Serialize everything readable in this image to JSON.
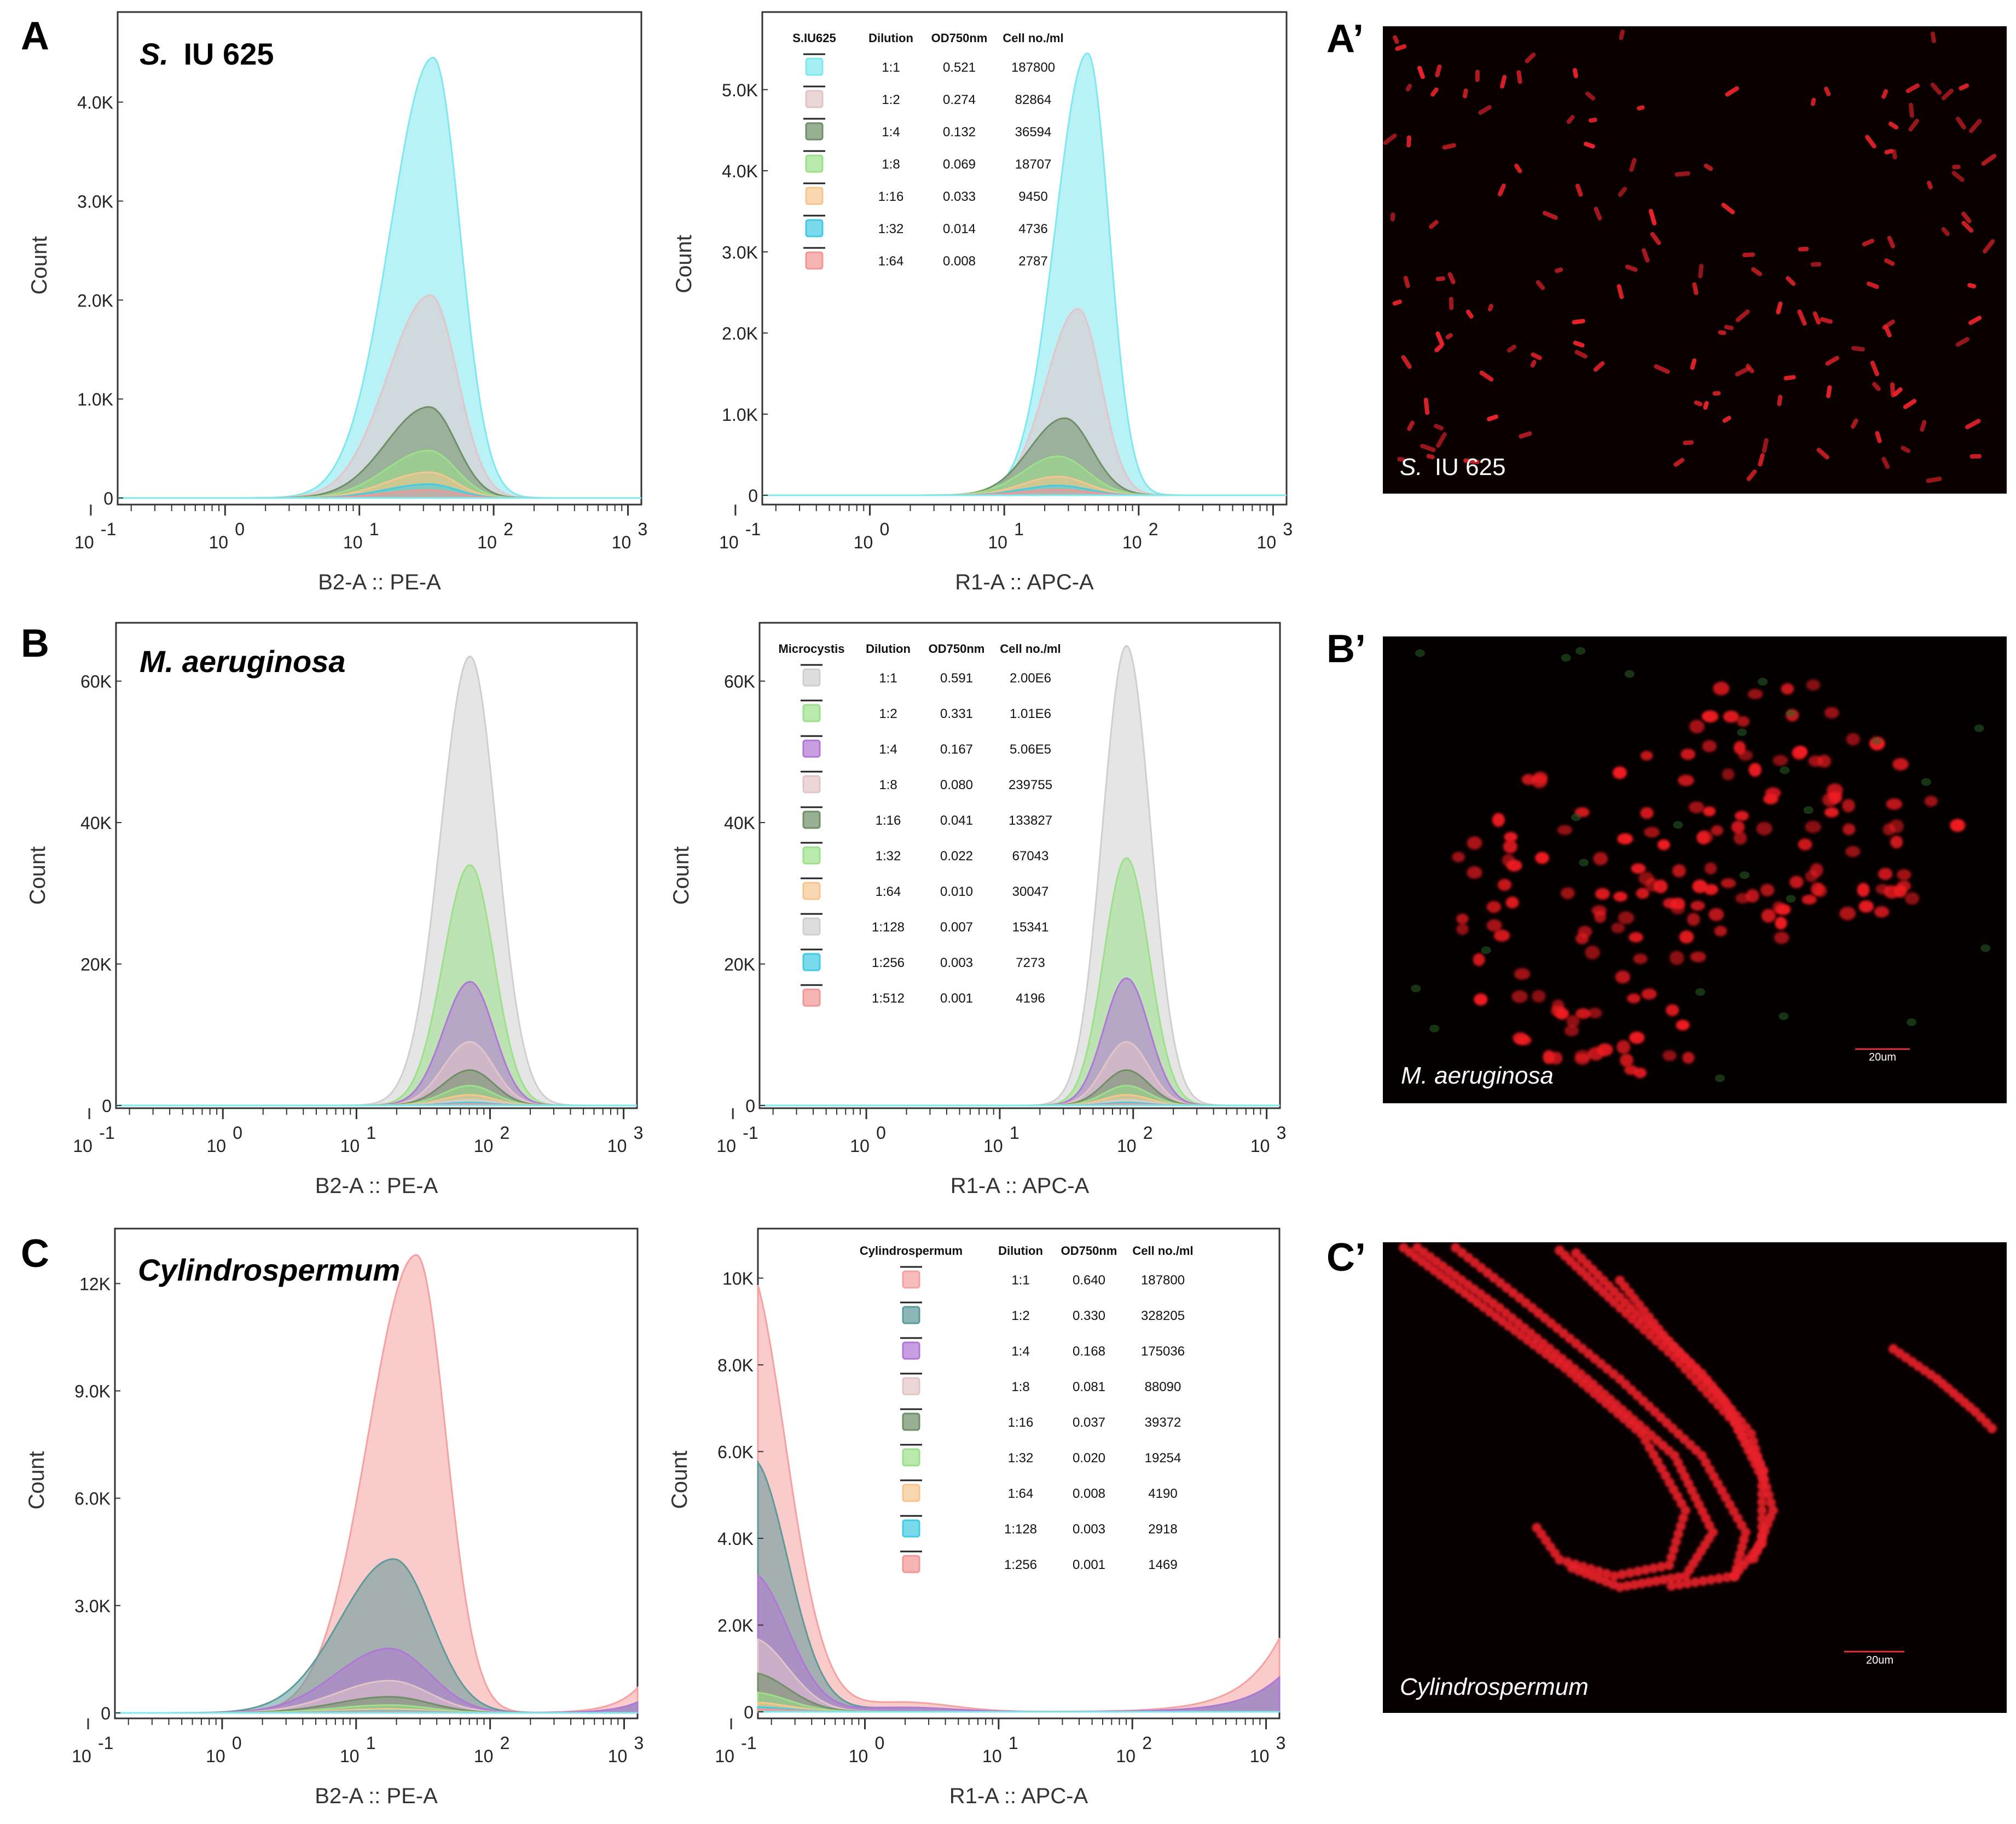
{
  "panels": [
    {
      "letter": "A",
      "species": "S.",
      "species_rest": "IU 625"
    },
    {
      "letter": "B",
      "species": "M. aeruginosa",
      "species_rest": ""
    },
    {
      "letter": "C",
      "species": "Cylindrospermum",
      "species_rest": ""
    }
  ],
  "micro": [
    {
      "letter": "A’",
      "label_it": "S.",
      "label_rest": "IU 625",
      "scale": ""
    },
    {
      "letter": "B’",
      "label_it": "M. aeruginosa",
      "label_rest": "",
      "scale": "20um"
    },
    {
      "letter": "C’",
      "label_it": "Cylindrospermum",
      "label_rest": "",
      "scale": "20um"
    }
  ],
  "colors": {
    "cyan": "#7fe8ee",
    "rose": "#e3c4c8",
    "dkgreen": "#6f8f66",
    "ltgreen": "#9de08a",
    "orange": "#f6c690",
    "blue": "#42cbe4",
    "red": "#f29696",
    "gray": "#cfcfcf",
    "teal": "#5d9a9a",
    "purple": "#b077d6",
    "salmon": "#f6a0a0"
  },
  "chart_data": [
    {
      "id": "A-PE",
      "type": "area",
      "xscale": "log",
      "xlim": [
        -0.8,
        3.1
      ],
      "xticks": [
        "-1",
        "0",
        "1",
        "2",
        "3"
      ],
      "xlabel": "B2-A :: PE-A",
      "ylabel": "Count",
      "ylim": [
        0,
        4700
      ],
      "yticks": [
        {
          "v": 0,
          "l": "0"
        },
        {
          "v": 1000,
          "l": "1.0K"
        },
        {
          "v": 2000,
          "l": "2.0K"
        },
        {
          "v": 3000,
          "l": "3.0K"
        },
        {
          "v": 4000,
          "l": "4.0K"
        }
      ],
      "series": [
        {
          "name": "1:1",
          "color": "cyan",
          "peak": 4450,
          "mu": 1.55,
          "sl": 0.32,
          "sr": 0.2
        },
        {
          "name": "1:2",
          "color": "rose",
          "peak": 2050,
          "mu": 1.53,
          "sl": 0.32,
          "sr": 0.2
        },
        {
          "name": "1:4",
          "color": "dkgreen",
          "peak": 920,
          "mu": 1.52,
          "sl": 0.32,
          "sr": 0.2
        },
        {
          "name": "1:8",
          "color": "ltgreen",
          "peak": 480,
          "mu": 1.52,
          "sl": 0.32,
          "sr": 0.2
        },
        {
          "name": "1:16",
          "color": "orange",
          "peak": 260,
          "mu": 1.52,
          "sl": 0.32,
          "sr": 0.2
        },
        {
          "name": "1:32",
          "color": "blue",
          "peak": 140,
          "mu": 1.52,
          "sl": 0.32,
          "sr": 0.2
        },
        {
          "name": "1:64",
          "color": "red",
          "peak": 80,
          "mu": 1.52,
          "sl": 0.32,
          "sr": 0.2
        }
      ]
    },
    {
      "id": "A-APC",
      "type": "area",
      "xscale": "log",
      "xlim": [
        -0.8,
        3.1
      ],
      "xticks": [
        "-1",
        "0",
        "1",
        "2",
        "3"
      ],
      "xlabel": "R1-A :: APC-A",
      "ylabel": "Count",
      "ylim": [
        0,
        5700
      ],
      "yticks": [
        {
          "v": 0,
          "l": "0"
        },
        {
          "v": 1000,
          "l": "1.0K"
        },
        {
          "v": 2000,
          "l": "2.0K"
        },
        {
          "v": 3000,
          "l": "3.0K"
        },
        {
          "v": 4000,
          "l": "4.0K"
        },
        {
          "v": 5000,
          "l": "5.0K"
        }
      ],
      "legend": {
        "title": "S.IU625",
        "headers": [
          "Dilution",
          "OD750nm",
          "Cell no./ml"
        ],
        "rows": [
          [
            "cyan",
            "1:1",
            "0.521",
            "187800"
          ],
          [
            "rose",
            "1:2",
            "0.274",
            "82864"
          ],
          [
            "dkgreen",
            "1:4",
            "0.132",
            "36594"
          ],
          [
            "ltgreen",
            "1:8",
            "0.069",
            "18707"
          ],
          [
            "orange",
            "1:16",
            "0.033",
            "9450"
          ],
          [
            "blue",
            "1:32",
            "0.014",
            "4736"
          ],
          [
            "red",
            "1:64",
            "0.008",
            "2787"
          ]
        ]
      },
      "series": [
        {
          "name": "1:1",
          "color": "cyan",
          "peak": 5450,
          "mu": 1.62,
          "sl": 0.24,
          "sr": 0.16
        },
        {
          "name": "1:2",
          "color": "rose",
          "peak": 2300,
          "mu": 1.55,
          "sl": 0.24,
          "sr": 0.17
        },
        {
          "name": "1:4",
          "color": "dkgreen",
          "peak": 950,
          "mu": 1.45,
          "sl": 0.26,
          "sr": 0.2
        },
        {
          "name": "1:8",
          "color": "ltgreen",
          "peak": 480,
          "mu": 1.4,
          "sl": 0.26,
          "sr": 0.22
        },
        {
          "name": "1:16",
          "color": "orange",
          "peak": 230,
          "mu": 1.4,
          "sl": 0.26,
          "sr": 0.22
        },
        {
          "name": "1:32",
          "color": "blue",
          "peak": 120,
          "mu": 1.4,
          "sl": 0.26,
          "sr": 0.22
        },
        {
          "name": "1:64",
          "color": "red",
          "peak": 70,
          "mu": 1.4,
          "sl": 0.26,
          "sr": 0.22
        }
      ]
    },
    {
      "id": "B-PE",
      "type": "area",
      "xscale": "log",
      "xlim": [
        -0.8,
        3.1
      ],
      "xticks": [
        "-1",
        "0",
        "1",
        "2",
        "3"
      ],
      "xlabel": "B2-A :: PE-A",
      "ylabel": "Count",
      "ylim": [
        0,
        65000
      ],
      "yticks": [
        {
          "v": 0,
          "l": "0"
        },
        {
          "v": 20000,
          "l": "20K"
        },
        {
          "v": 40000,
          "l": "40K"
        },
        {
          "v": 60000,
          "l": "60K"
        }
      ],
      "series": [
        {
          "name": "1:1",
          "color": "gray",
          "peak": 63500,
          "mu": 1.85,
          "sl": 0.22,
          "sr": 0.2
        },
        {
          "name": "1:2",
          "color": "ltgreen",
          "peak": 34000,
          "mu": 1.85,
          "sl": 0.2,
          "sr": 0.18
        },
        {
          "name": "1:4",
          "color": "purple",
          "peak": 17500,
          "mu": 1.85,
          "sl": 0.2,
          "sr": 0.18
        },
        {
          "name": "1:8",
          "color": "rose",
          "peak": 9000,
          "mu": 1.85,
          "sl": 0.2,
          "sr": 0.18
        },
        {
          "name": "1:16",
          "color": "dkgreen",
          "peak": 5000,
          "mu": 1.85,
          "sl": 0.2,
          "sr": 0.18
        },
        {
          "name": "1:32",
          "color": "ltgreen",
          "peak": 2800,
          "mu": 1.85,
          "sl": 0.2,
          "sr": 0.18
        },
        {
          "name": "1:64",
          "color": "orange",
          "peak": 1500,
          "mu": 1.85,
          "sl": 0.2,
          "sr": 0.18
        },
        {
          "name": "1:128",
          "color": "gray",
          "peak": 800,
          "mu": 1.85,
          "sl": 0.2,
          "sr": 0.18
        },
        {
          "name": "1:256",
          "color": "blue",
          "peak": 400,
          "mu": 1.85,
          "sl": 0.2,
          "sr": 0.18
        },
        {
          "name": "1:512",
          "color": "red",
          "peak": 200,
          "mu": 1.85,
          "sl": 0.2,
          "sr": 0.18
        }
      ]
    },
    {
      "id": "B-APC",
      "type": "area",
      "xscale": "log",
      "xlim": [
        -0.8,
        3.1
      ],
      "xticks": [
        "-1",
        "0",
        "1",
        "2",
        "3"
      ],
      "xlabel": "R1-A :: APC-A",
      "ylabel": "Count",
      "ylim": [
        0,
        65000
      ],
      "yticks": [
        {
          "v": 0,
          "l": "0"
        },
        {
          "v": 20000,
          "l": "20K"
        },
        {
          "v": 40000,
          "l": "40K"
        },
        {
          "v": 60000,
          "l": "60K"
        }
      ],
      "legend": {
        "title": "Microcystis",
        "headers": [
          "Dilution",
          "OD750nm",
          "Cell no./ml"
        ],
        "rows": [
          [
            "gray",
            "1:1",
            "0.591",
            "2.00E6"
          ],
          [
            "ltgreen",
            "1:2",
            "0.331",
            "1.01E6"
          ],
          [
            "purple",
            "1:4",
            "0.167",
            "5.06E5"
          ],
          [
            "rose",
            "1:8",
            "0.080",
            "239755"
          ],
          [
            "dkgreen",
            "1:16",
            "0.041",
            "133827"
          ],
          [
            "ltgreen",
            "1:32",
            "0.022",
            "67043"
          ],
          [
            "orange",
            "1:64",
            "0.010",
            "30047"
          ],
          [
            "gray",
            "1:128",
            "0.007",
            "15341"
          ],
          [
            "blue",
            "1:256",
            "0.003",
            "7273"
          ],
          [
            "red",
            "1:512",
            "0.001",
            "4196"
          ]
        ]
      },
      "series": [
        {
          "name": "1:1",
          "color": "gray",
          "peak": 65000,
          "mu": 1.95,
          "sl": 0.18,
          "sr": 0.18
        },
        {
          "name": "1:2",
          "color": "ltgreen",
          "peak": 35000,
          "mu": 1.95,
          "sl": 0.17,
          "sr": 0.17
        },
        {
          "name": "1:4",
          "color": "purple",
          "peak": 18000,
          "mu": 1.95,
          "sl": 0.17,
          "sr": 0.17
        },
        {
          "name": "1:8",
          "color": "rose",
          "peak": 9000,
          "mu": 1.95,
          "sl": 0.17,
          "sr": 0.17
        },
        {
          "name": "1:16",
          "color": "dkgreen",
          "peak": 5000,
          "mu": 1.95,
          "sl": 0.17,
          "sr": 0.17
        },
        {
          "name": "1:32",
          "color": "ltgreen",
          "peak": 2800,
          "mu": 1.95,
          "sl": 0.17,
          "sr": 0.17
        },
        {
          "name": "1:64",
          "color": "orange",
          "peak": 1500,
          "mu": 1.95,
          "sl": 0.17,
          "sr": 0.17
        },
        {
          "name": "1:128",
          "color": "gray",
          "peak": 800,
          "mu": 1.95,
          "sl": 0.17,
          "sr": 0.17
        },
        {
          "name": "1:256",
          "color": "blue",
          "peak": 400,
          "mu": 1.95,
          "sl": 0.17,
          "sr": 0.17
        },
        {
          "name": "1:512",
          "color": "red",
          "peak": 200,
          "mu": 1.95,
          "sl": 0.17,
          "sr": 0.17
        }
      ]
    },
    {
      "id": "C-PE",
      "type": "area",
      "xscale": "log",
      "xlim": [
        -0.8,
        3.1
      ],
      "xticks": [
        "-1",
        "0",
        "1",
        "2",
        "3"
      ],
      "xlabel": "B2-A :: PE-A",
      "ylabel": "Count",
      "ylim": [
        0,
        13000
      ],
      "yticks": [
        {
          "v": 0,
          "l": "0"
        },
        {
          "v": 3000,
          "l": "3.0K"
        },
        {
          "v": 6000,
          "l": "6.0K"
        },
        {
          "v": 9000,
          "l": "9.0K"
        },
        {
          "v": 12000,
          "l": "12K"
        }
      ],
      "series": [
        {
          "name": "1:1",
          "color": "salmon",
          "peak": 12800,
          "mu": 1.45,
          "sl": 0.36,
          "sr": 0.22
        },
        {
          "name": "1:2",
          "color": "teal",
          "peak": 4300,
          "mu": 1.28,
          "sl": 0.4,
          "sr": 0.28
        },
        {
          "name": "1:4",
          "color": "purple",
          "peak": 1800,
          "mu": 1.25,
          "sl": 0.4,
          "sr": 0.3
        },
        {
          "name": "1:8",
          "color": "rose",
          "peak": 900,
          "mu": 1.25,
          "sl": 0.4,
          "sr": 0.3
        },
        {
          "name": "1:16",
          "color": "dkgreen",
          "peak": 450,
          "mu": 1.25,
          "sl": 0.4,
          "sr": 0.3
        },
        {
          "name": "1:32",
          "color": "ltgreen",
          "peak": 220,
          "mu": 1.25,
          "sl": 0.4,
          "sr": 0.3
        },
        {
          "name": "1:64",
          "color": "orange",
          "peak": 110,
          "mu": 1.25,
          "sl": 0.4,
          "sr": 0.3
        },
        {
          "name": "1:128",
          "color": "blue",
          "peak": 60,
          "mu": 1.25,
          "sl": 0.4,
          "sr": 0.3
        },
        {
          "name": "1:256",
          "color": "red",
          "peak": 30,
          "mu": 1.25,
          "sl": 0.4,
          "sr": 0.3
        }
      ]
    },
    {
      "id": "C-APC",
      "type": "area",
      "xscale": "log",
      "xlim": [
        -0.8,
        3.1
      ],
      "xticks": [
        "-1",
        "0",
        "1",
        "2",
        "3"
      ],
      "xlabel": "R1-A :: APC-A",
      "ylabel": "Count",
      "ylim": [
        0,
        10700
      ],
      "yticks": [
        {
          "v": 0,
          "l": "0"
        },
        {
          "v": 2000,
          "l": "2.0K"
        },
        {
          "v": 4000,
          "l": "4.0K"
        },
        {
          "v": 6000,
          "l": "6.0K"
        },
        {
          "v": 8000,
          "l": "8.0K"
        },
        {
          "v": 10000,
          "l": "10K"
        }
      ],
      "legend": {
        "title": "Cylindrospermum",
        "headers": [
          "Dilution",
          "OD750nm",
          "Cell no./ml"
        ],
        "rows": [
          [
            "salmon",
            "1:1",
            "0.640",
            "187800"
          ],
          [
            "teal",
            "1:2",
            "0.330",
            "328205"
          ],
          [
            "purple",
            "1:4",
            "0.168",
            "175036"
          ],
          [
            "rose",
            "1:8",
            "0.081",
            "88090"
          ],
          [
            "dkgreen",
            "1:16",
            "0.037",
            "39372"
          ],
          [
            "ltgreen",
            "1:32",
            "0.020",
            "19254"
          ],
          [
            "orange",
            "1:64",
            "0.008",
            "4190"
          ],
          [
            "blue",
            "1:128",
            "0.003",
            "2918"
          ],
          [
            "red",
            "1:256",
            "0.001",
            "1469"
          ]
        ]
      },
      "series": [
        {
          "name": "1:1",
          "color": "salmon",
          "peak": 10400,
          "mu": -0.9,
          "sl": 0.45,
          "sr": 0.3
        },
        {
          "name": "1:2",
          "color": "teal",
          "peak": 5850,
          "mu": -0.85,
          "sl": 0.45,
          "sr": 0.27
        },
        {
          "name": "1:4",
          "color": "purple",
          "peak": 3200,
          "mu": -0.85,
          "sl": 0.45,
          "sr": 0.27
        },
        {
          "name": "1:8",
          "color": "rose",
          "peak": 1700,
          "mu": -0.85,
          "sl": 0.45,
          "sr": 0.27
        },
        {
          "name": "1:16",
          "color": "dkgreen",
          "peak": 900,
          "mu": -0.85,
          "sl": 0.45,
          "sr": 0.27
        },
        {
          "name": "1:32",
          "color": "ltgreen",
          "peak": 450,
          "mu": -0.85,
          "sl": 0.45,
          "sr": 0.27
        },
        {
          "name": "1:64",
          "color": "orange",
          "peak": 220,
          "mu": -0.85,
          "sl": 0.45,
          "sr": 0.27
        },
        {
          "name": "1:128",
          "color": "blue",
          "peak": 110,
          "mu": -0.85,
          "sl": 0.45,
          "sr": 0.27
        },
        {
          "name": "1:256",
          "color": "red",
          "peak": 60,
          "mu": -0.85,
          "sl": 0.45,
          "sr": 0.27
        }
      ]
    }
  ]
}
